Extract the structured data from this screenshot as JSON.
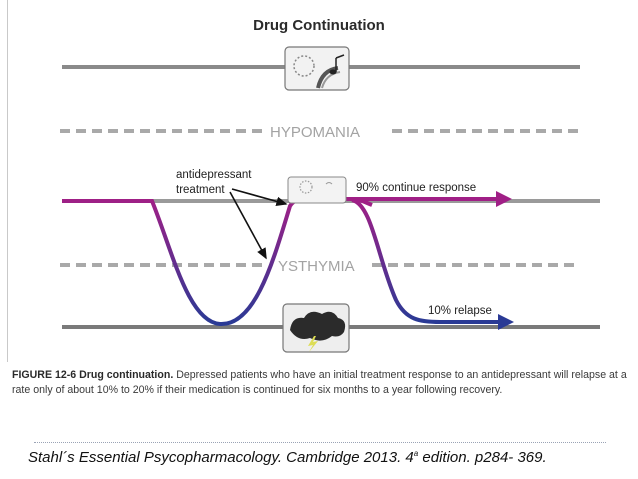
{
  "figure": {
    "title": "Drug Continuation",
    "band_top_label": "HYPOMANIA",
    "band_bottom_label": "YSTHYMIA",
    "annotation_treatment": [
      "antidepressant",
      "treatment"
    ],
    "label_continue": "90% continue response",
    "label_relapse": "10% relapse",
    "colors": {
      "track": "#8a8a8a",
      "curve_start": "#a01f86",
      "curve_end": "#2a3a95",
      "dashes": "#a9a9a9"
    },
    "icons": [
      "sun-music-icon",
      "small-sun-icon",
      "storm-cloud-icon"
    ]
  },
  "caption": {
    "lead": "FIGURE 12-6 Drug continuation.",
    "text": " Depressed patients who have an initial treatment response to an antidepressant will relapse at a rate only of about 10% to 20% if their medication is continued for six months to a year following recovery."
  },
  "citation": {
    "before": "Stahl´s Essential Psycopharmacology. Cambridge 2013. 4",
    "superscript": "a",
    "after": " edition. p284- 369."
  }
}
